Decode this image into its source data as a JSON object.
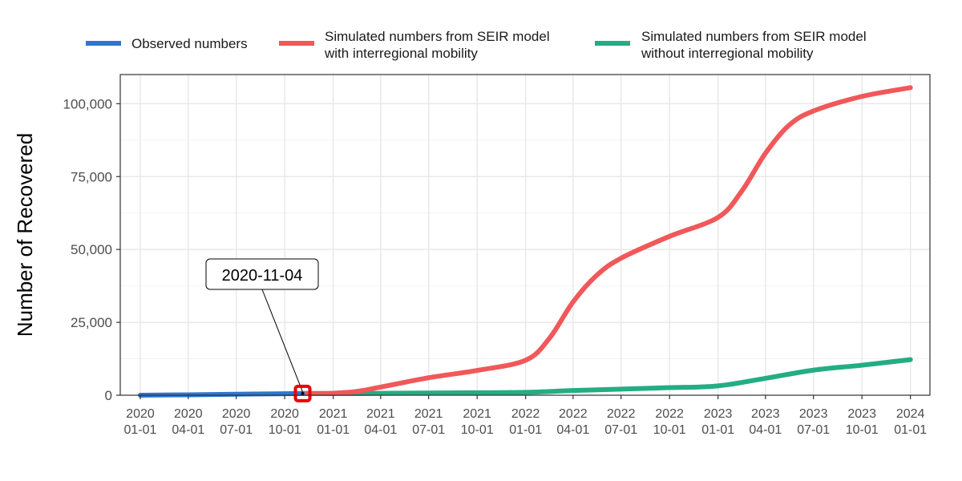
{
  "chart_data": {
    "type": "line",
    "title": "",
    "xlabel": "",
    "ylabel": "Number of Recovered",
    "ylim": [
      0,
      110000
    ],
    "xlim": [
      "2019-11-24",
      "2024-02-07"
    ],
    "grid": true,
    "legend_position": "top",
    "y_ticks": [
      0,
      25000,
      50000,
      75000,
      100000
    ],
    "y_tick_labels": [
      "0",
      "25,000",
      "50,000",
      "75,000",
      "100,000"
    ],
    "x_ticks": [
      "2020-01-01",
      "2020-04-01",
      "2020-07-01",
      "2020-10-01",
      "2021-01-01",
      "2021-04-01",
      "2021-07-01",
      "2021-10-01",
      "2022-01-01",
      "2022-04-01",
      "2022-07-01",
      "2022-10-01",
      "2023-01-01",
      "2023-04-01",
      "2023-07-01",
      "2023-10-01",
      "2024-01-01"
    ],
    "x_tick_labels": [
      [
        "2020",
        "01-01"
      ],
      [
        "2020",
        "04-01"
      ],
      [
        "2020",
        "07-01"
      ],
      [
        "2020",
        "10-01"
      ],
      [
        "2021",
        "01-01"
      ],
      [
        "2021",
        "04-01"
      ],
      [
        "2021",
        "07-01"
      ],
      [
        "2021",
        "10-01"
      ],
      [
        "2022",
        "01-01"
      ],
      [
        "2022",
        "04-01"
      ],
      [
        "2022",
        "07-01"
      ],
      [
        "2022",
        "10-01"
      ],
      [
        "2023",
        "01-01"
      ],
      [
        "2023",
        "04-01"
      ],
      [
        "2023",
        "07-01"
      ],
      [
        "2023",
        "10-01"
      ],
      [
        "2024",
        "01-01"
      ]
    ],
    "series": [
      {
        "name": "Observed numbers",
        "color": "#2d77d2",
        "points": [
          [
            "2020-01-01",
            0
          ],
          [
            "2020-04-01",
            150
          ],
          [
            "2020-07-01",
            350
          ],
          [
            "2020-10-01",
            500
          ],
          [
            "2020-11-04",
            600
          ]
        ]
      },
      {
        "name": "Simulated numbers from SEIR model with interregional mobility",
        "color": "#f0585a",
        "points": [
          [
            "2020-11-04",
            600
          ],
          [
            "2021-01-01",
            700
          ],
          [
            "2021-02-15",
            1300
          ],
          [
            "2021-04-01",
            2800
          ],
          [
            "2021-07-01",
            6000
          ],
          [
            "2021-10-01",
            8500
          ],
          [
            "2022-01-01",
            12000
          ],
          [
            "2022-02-15",
            19500
          ],
          [
            "2022-04-01",
            32000
          ],
          [
            "2022-05-15",
            41000
          ],
          [
            "2022-07-01",
            47000
          ],
          [
            "2022-10-01",
            54500
          ],
          [
            "2023-01-01",
            61000
          ],
          [
            "2023-02-15",
            70000
          ],
          [
            "2023-04-01",
            83000
          ],
          [
            "2023-05-15",
            92500
          ],
          [
            "2023-07-01",
            97500
          ],
          [
            "2023-10-01",
            102500
          ],
          [
            "2024-01-01",
            105500
          ]
        ]
      },
      {
        "name": "Simulated numbers from SEIR model without interregional mobility",
        "color": "#23ad83",
        "points": [
          [
            "2020-11-04",
            600
          ],
          [
            "2021-01-01",
            600
          ],
          [
            "2021-04-01",
            650
          ],
          [
            "2021-07-01",
            750
          ],
          [
            "2021-10-01",
            850
          ],
          [
            "2022-01-01",
            1000
          ],
          [
            "2022-04-01",
            1600
          ],
          [
            "2022-07-01",
            2100
          ],
          [
            "2022-10-01",
            2600
          ],
          [
            "2023-01-01",
            3200
          ],
          [
            "2023-04-01",
            5800
          ],
          [
            "2023-07-01",
            8600
          ],
          [
            "2023-10-01",
            10300
          ],
          [
            "2024-01-01",
            12200
          ]
        ]
      }
    ],
    "annotation": {
      "label": "2020-11-04",
      "x": "2020-11-04",
      "y": 600,
      "marker_color": "#ee0000"
    }
  },
  "legend": {
    "items": [
      {
        "lines": [
          "Observed numbers"
        ],
        "color": "#2d77d2"
      },
      {
        "lines": [
          "Simulated numbers from SEIR model",
          "with interregional mobility"
        ],
        "color": "#f0585a"
      },
      {
        "lines": [
          "Simulated numbers from SEIR model",
          "without interregional mobility"
        ],
        "color": "#23ad83"
      }
    ]
  }
}
